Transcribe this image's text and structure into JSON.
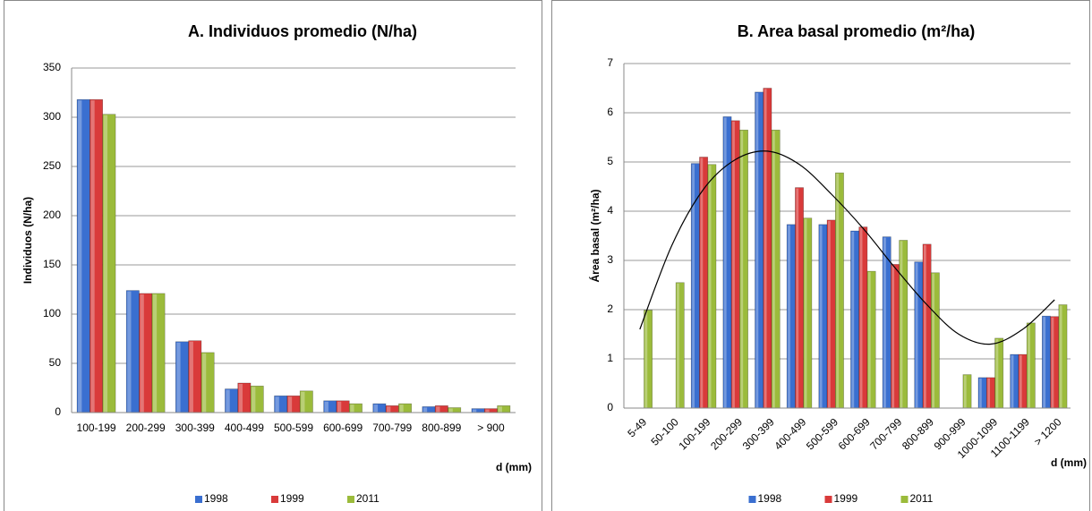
{
  "chart_data": [
    {
      "type": "bar",
      "title": "A. Individuos promedio (N/ha)",
      "y_label": "Individuos (N/ha)",
      "x_label": "d (mm)",
      "categories": [
        "100-199",
        "200-299",
        "300-399",
        "400-499",
        "500-599",
        "600-699",
        "700-799",
        "800-899",
        "> 900"
      ],
      "series": [
        {
          "name": "1998",
          "color": "#3a6fd0",
          "values": [
            318,
            124,
            72,
            24,
            17,
            12,
            9,
            6,
            4
          ]
        },
        {
          "name": "1999",
          "color": "#d93a3a",
          "values": [
            318,
            121,
            73,
            30,
            17,
            12,
            7,
            7,
            4
          ]
        },
        {
          "name": "2011",
          "color": "#9bbb3b",
          "values": [
            303,
            121,
            61,
            27,
            22,
            9,
            9,
            5,
            7
          ]
        }
      ],
      "ylim": [
        0,
        350
      ],
      "yticks": [
        0,
        50,
        100,
        150,
        200,
        250,
        300,
        350
      ],
      "grid": true,
      "legend": "bottom"
    },
    {
      "type": "bar",
      "title": "B. Area basal promedio (m²/ha)",
      "y_label": "Área basal (m²/ha)",
      "x_label": "d (mm)",
      "categories": [
        "5-49",
        "50-100",
        "100-199",
        "200-299",
        "300-399",
        "400-499",
        "500-599",
        "600-699",
        "700-799",
        "800-899",
        "900-999",
        "1000-1099",
        "1100-1199",
        "> 1200"
      ],
      "series": [
        {
          "name": "1998",
          "color": "#3a6fd0",
          "values": [
            null,
            null,
            4.97,
            5.92,
            6.42,
            3.73,
            3.73,
            3.6,
            3.48,
            2.97,
            null,
            0.62,
            1.09,
            1.87
          ]
        },
        {
          "name": "1999",
          "color": "#d93a3a",
          "values": [
            null,
            null,
            5.1,
            5.84,
            6.5,
            4.48,
            3.82,
            3.68,
            2.92,
            3.33,
            null,
            0.62,
            1.09,
            1.86
          ]
        },
        {
          "name": "2011",
          "color": "#9bbb3b",
          "values": [
            1.99,
            2.55,
            4.95,
            5.65,
            5.65,
            3.86,
            4.78,
            2.78,
            3.41,
            2.75,
            0.68,
            1.42,
            1.73,
            2.1
          ]
        }
      ],
      "trendline_values": [
        1.6,
        3.3,
        4.45,
        5.05,
        5.22,
        4.95,
        4.35,
        3.65,
        2.85,
        2.1,
        1.5,
        1.3,
        1.6,
        2.2
      ],
      "ylim": [
        0,
        7
      ],
      "yticks": [
        0,
        1,
        2,
        3,
        4,
        5,
        6,
        7
      ],
      "grid": true,
      "legend": "bottom",
      "rotate_x_labels": true
    }
  ]
}
